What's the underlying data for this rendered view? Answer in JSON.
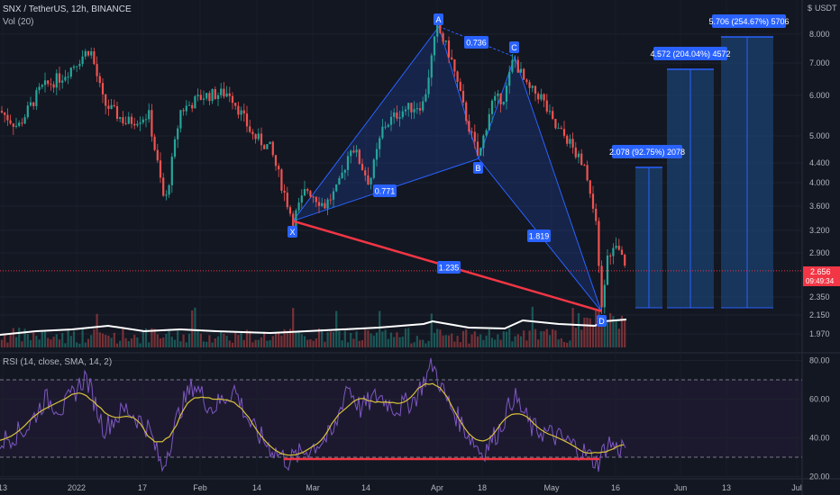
{
  "header": {
    "symbol_line": "SNX / TetherUS, 12h, BINANCE",
    "volume_label": "Vol (20)",
    "rsi_label": "RSI (14, close, SMA, 14, 2)"
  },
  "price_axis": {
    "currency": "USDT",
    "ticks": [
      "8.000",
      "7.000",
      "6.000",
      "5.000",
      "4.400",
      "4.000",
      "3.600",
      "3.200",
      "2.900",
      "2.350",
      "2.150",
      "1.970"
    ],
    "last_price": "2.656",
    "countdown": "09:49:34"
  },
  "rsi_axis": {
    "ticks": [
      "80.00",
      "60.00",
      "40.00",
      "20.00"
    ]
  },
  "time_axis": {
    "labels": [
      "13",
      "2022",
      "17",
      "Feb",
      "14",
      "Mar",
      "14",
      "Apr",
      "18",
      "May",
      "16",
      "Jun",
      "13",
      "Jul"
    ]
  },
  "pattern": {
    "points": [
      "X",
      "A",
      "B",
      "C",
      "D"
    ],
    "ratios": {
      "AB": "0.771",
      "BC": "0.736",
      "CD": "1.819",
      "XD": "1.235"
    }
  },
  "targets": [
    {
      "label": "2.078 (92.75%) 2078"
    },
    {
      "label": "4.572 (204.04%) 4572"
    },
    {
      "label": "5.706 (254.67%) 5706"
    }
  ],
  "colors": {
    "background": "#131722",
    "up": "#26a69a",
    "down": "#ef5350",
    "pattern": "#2962ff",
    "divergence": "#f23645",
    "rsi": "#7e57c2",
    "rsi_ma": "#d9c13a",
    "volume_ma": "#ffffff"
  },
  "chart_data": {
    "type": "line",
    "price": {
      "scale": "log",
      "ylim": [
        1.9,
        9.0
      ],
      "pattern_points": [
        {
          "name": "X",
          "value": 3.35
        },
        {
          "name": "A",
          "value": 8.3
        },
        {
          "name": "B",
          "value": 4.48
        },
        {
          "name": "C",
          "value": 7.2
        },
        {
          "name": "D",
          "value": 2.2
        }
      ],
      "last_price": 2.656
    },
    "rsi": {
      "ylim": [
        18,
        84
      ],
      "levels": [
        70,
        30
      ]
    }
  }
}
